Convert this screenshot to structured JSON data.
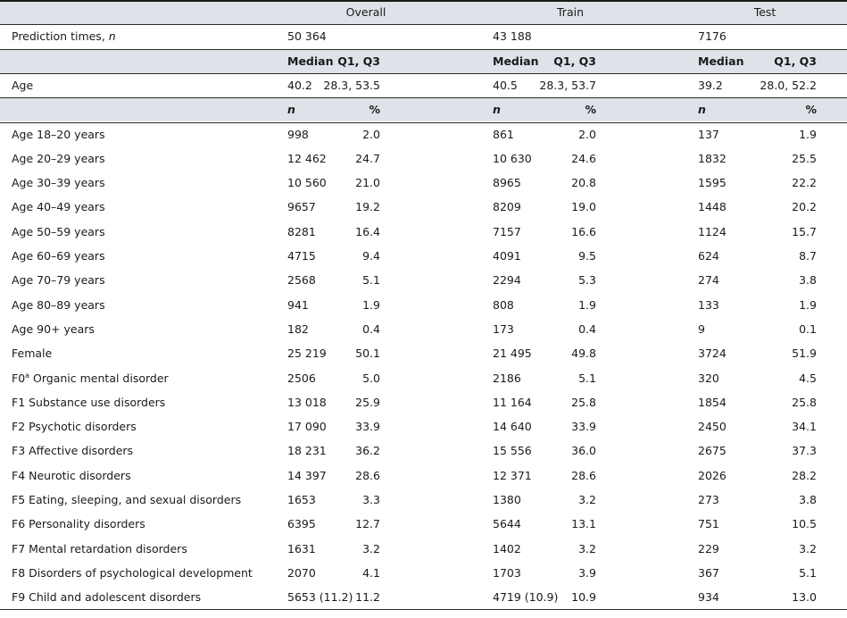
{
  "groups": [
    "Overall",
    "Train",
    "Test"
  ],
  "prediction_row": {
    "label": "Prediction times, ",
    "label_italic": "n",
    "values": [
      "50 364",
      "43 188",
      "7176"
    ]
  },
  "median_header": {
    "median": "Median",
    "q": "Q1, Q3"
  },
  "age_row": {
    "label": "Age",
    "values": [
      [
        "40.2",
        "28.3, 53.5"
      ],
      [
        "40.5",
        "28.3, 53.7"
      ],
      [
        "39.2",
        "28.0, 52.2"
      ]
    ]
  },
  "count_header": {
    "n": "n",
    "pct": "%"
  },
  "rows": [
    {
      "label": "Age 18–20 years",
      "values": [
        "998",
        "2.0",
        "861",
        "2.0",
        "137",
        "1.9"
      ]
    },
    {
      "label": "Age 20–29 years",
      "values": [
        "12 462",
        "24.7",
        "10 630",
        "24.6",
        "1832",
        "25.5"
      ]
    },
    {
      "label": "Age 30–39 years",
      "values": [
        "10 560",
        "21.0",
        "8965",
        "20.8",
        "1595",
        "22.2"
      ]
    },
    {
      "label": "Age 40–49 years",
      "values": [
        "9657",
        "19.2",
        "8209",
        "19.0",
        "1448",
        "20.2"
      ]
    },
    {
      "label": "Age 50–59 years",
      "values": [
        "8281",
        "16.4",
        "7157",
        "16.6",
        "1124",
        "15.7"
      ]
    },
    {
      "label": "Age 60–69 years",
      "values": [
        "4715",
        "9.4",
        "4091",
        "9.5",
        "624",
        "8.7"
      ]
    },
    {
      "label": "Age 70–79 years",
      "values": [
        "2568",
        "5.1",
        "2294",
        "5.3",
        "274",
        "3.8"
      ]
    },
    {
      "label": "Age 80–89 years",
      "values": [
        "941",
        "1.9",
        "808",
        "1.9",
        "133",
        "1.9"
      ]
    },
    {
      "label": "Age 90+ years",
      "values": [
        "182",
        "0.4",
        "173",
        "0.4",
        "9",
        "0.1"
      ]
    },
    {
      "label": "Female",
      "values": [
        "25 219",
        "50.1",
        "21 495",
        "49.8",
        "3724",
        "51.9"
      ]
    },
    {
      "label_prefix": "F0",
      "label_sup": "a",
      "label": " Organic mental disorder",
      "values": [
        "2506",
        "5.0",
        "2186",
        "5.1",
        "320",
        "4.5"
      ]
    },
    {
      "label": "F1 Substance use disorders",
      "values": [
        "13 018",
        "25.9",
        "11 164",
        "25.8",
        "1854",
        "25.8"
      ]
    },
    {
      "label": "F2 Psychotic disorders",
      "values": [
        "17 090",
        "33.9",
        "14 640",
        "33.9",
        "2450",
        "34.1"
      ]
    },
    {
      "label": "F3 Affective disorders",
      "values": [
        "18 231",
        "36.2",
        "15 556",
        "36.0",
        "2675",
        "37.3"
      ]
    },
    {
      "label": "F4 Neurotic disorders",
      "values": [
        "14 397",
        "28.6",
        "12 371",
        "28.6",
        "2026",
        "28.2"
      ]
    },
    {
      "label": "F5 Eating, sleeping, and sexual disorders",
      "values": [
        "1653",
        "3.3",
        "1380",
        "3.2",
        "273",
        "3.8"
      ]
    },
    {
      "label": "F6 Personality disorders",
      "values": [
        "6395",
        "12.7",
        "5644",
        "13.1",
        "751",
        "10.5"
      ]
    },
    {
      "label": "F7 Mental retardation disorders",
      "values": [
        "1631",
        "3.2",
        "1402",
        "3.2",
        "229",
        "3.2"
      ]
    },
    {
      "label": "F8 Disorders of psychological development",
      "values": [
        "2070",
        "4.1",
        "1703",
        "3.9",
        "367",
        "5.1"
      ]
    },
    {
      "label": "F9 Child and adolescent disorders",
      "values": [
        "5653 (11.2)",
        "11.2",
        "4719 (10.9)",
        "10.9",
        "934",
        "13.0"
      ]
    }
  ],
  "colors": {
    "header_bg": "#dfe2e8",
    "rule": "#2a2a2a"
  }
}
